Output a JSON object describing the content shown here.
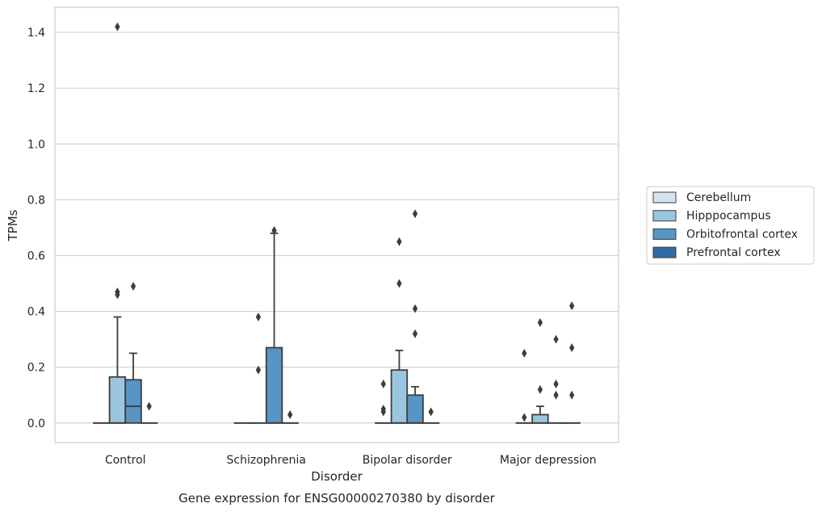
{
  "chart_data": {
    "type": "boxplot",
    "title": "",
    "caption": "Gene expression for ENSG00000270380 by disorder",
    "xlabel": "Disorder",
    "ylabel": "TPMs",
    "ylim": [
      -0.07,
      1.49
    ],
    "yticks": [
      0.0,
      0.2,
      0.4,
      0.6,
      0.8,
      1.0,
      1.2,
      1.4
    ],
    "ytick_labels": [
      "0.0",
      "0.2",
      "0.4",
      "0.6",
      "0.8",
      "1.0",
      "1.2",
      "1.4"
    ],
    "grid": "horizontal",
    "legend_position": "right",
    "categories": [
      "Control",
      "Schizophrenia",
      "Bipolar disorder",
      "Major depression"
    ],
    "series": [
      {
        "name": "Cerebellum",
        "color": "#d4e3f1",
        "boxes": [
          {
            "q1": 0,
            "median": 0,
            "q3": 0,
            "whisker_low": 0,
            "whisker_high": 0,
            "outliers": []
          },
          {
            "q1": 0,
            "median": 0,
            "q3": 0,
            "whisker_low": 0,
            "whisker_high": 0,
            "outliers": []
          },
          {
            "q1": 0,
            "median": 0,
            "q3": 0,
            "whisker_low": 0,
            "whisker_high": 0,
            "outliers": [
              0.14,
              0.05,
              0.04
            ]
          },
          {
            "q1": 0,
            "median": 0,
            "q3": 0,
            "whisker_low": 0,
            "whisker_high": 0,
            "outliers": [
              0.25,
              0.02
            ]
          }
        ]
      },
      {
        "name": "Hipppocampus",
        "color": "#9bc5de",
        "boxes": [
          {
            "q1": 0,
            "median": 0,
            "q3": 0.165,
            "whisker_low": 0,
            "whisker_high": 0.38,
            "outliers": [
              0.47,
              0.46,
              1.42
            ]
          },
          {
            "q1": 0,
            "median": 0,
            "q3": 0,
            "whisker_low": 0,
            "whisker_high": 0,
            "outliers": [
              0.38,
              0.19
            ]
          },
          {
            "q1": 0,
            "median": 0,
            "q3": 0.19,
            "whisker_low": 0,
            "whisker_high": 0.26,
            "outliers": [
              0.65,
              0.5
            ]
          },
          {
            "q1": 0,
            "median": 0,
            "q3": 0.03,
            "whisker_low": 0,
            "whisker_high": 0.06,
            "outliers": [
              0.36,
              0.12
            ]
          }
        ]
      },
      {
        "name": "Orbitofrontal cortex",
        "color": "#5795c4",
        "boxes": [
          {
            "q1": 0,
            "median": 0.06,
            "q3": 0.155,
            "whisker_low": 0,
            "whisker_high": 0.25,
            "outliers": [
              0.49
            ]
          },
          {
            "q1": 0,
            "median": 0,
            "q3": 0.27,
            "whisker_low": 0,
            "whisker_high": 0.68,
            "outliers": [
              0.69
            ]
          },
          {
            "q1": 0,
            "median": 0,
            "q3": 0.1,
            "whisker_low": 0,
            "whisker_high": 0.13,
            "outliers": [
              0.75,
              0.41,
              0.32
            ]
          },
          {
            "q1": 0,
            "median": 0,
            "q3": 0,
            "whisker_low": 0,
            "whisker_high": 0,
            "outliers": [
              0.3,
              0.14,
              0.1
            ]
          }
        ]
      },
      {
        "name": "Prefrontal cortex",
        "color": "#2f6ca6",
        "boxes": [
          {
            "q1": 0,
            "median": 0,
            "q3": 0,
            "whisker_low": 0,
            "whisker_high": 0,
            "outliers": [
              0.06
            ]
          },
          {
            "q1": 0,
            "median": 0,
            "q3": 0,
            "whisker_low": 0,
            "whisker_high": 0,
            "outliers": [
              0.03
            ]
          },
          {
            "q1": 0,
            "median": 0,
            "q3": 0,
            "whisker_low": 0,
            "whisker_high": 0,
            "outliers": [
              0.04
            ]
          },
          {
            "q1": 0,
            "median": 0,
            "q3": 0,
            "whisker_low": 0,
            "whisker_high": 0,
            "outliers": [
              0.42,
              0.27,
              0.1
            ]
          }
        ]
      }
    ],
    "style": {
      "edge_color": "#3d3d3d",
      "grid_color": "#d0d0d0",
      "frame_color": "#cccccc",
      "outlier_color": "#3d3d3d"
    }
  }
}
